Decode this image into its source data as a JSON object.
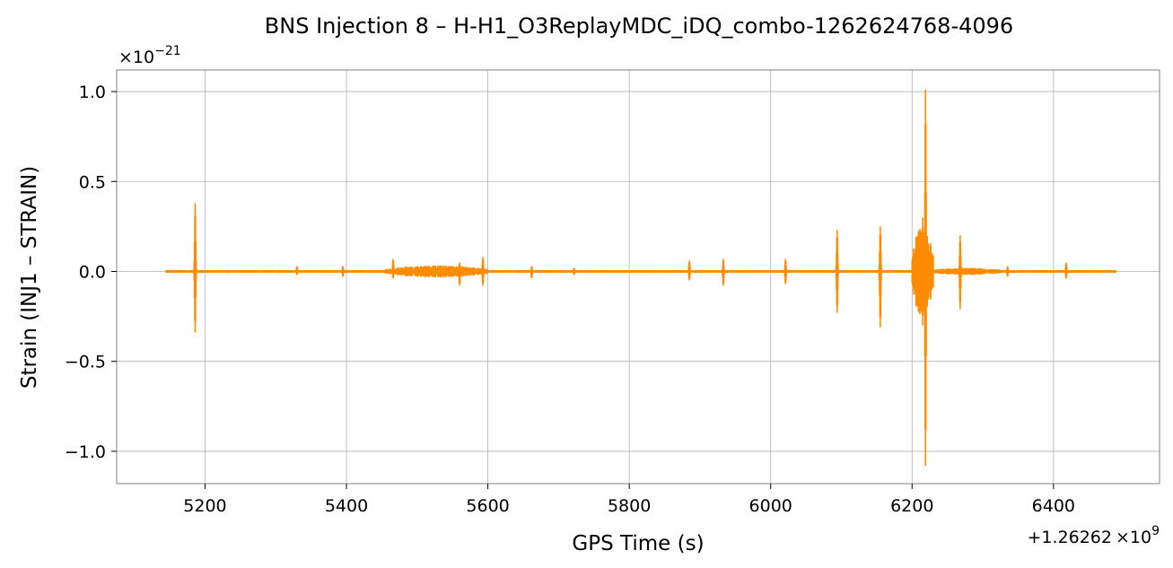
{
  "chart_data": {
    "type": "line",
    "title": "BNS Injection 8 – H-H1_O3ReplayMDC_iDQ_combo-1262624768-4096",
    "xlabel": "GPS Time (s)",
    "ylabel": "Strain (INJ1 – STRAIN)",
    "x_offset_label_prefix": "+1.26262",
    "x_offset_label_suffix": "×10",
    "x_offset_label_exp": "9",
    "y_multiplier_prefix": "×10",
    "y_multiplier_exp": "−21",
    "xlim": [
      5075,
      6550
    ],
    "ylim": [
      -1.18,
      1.12
    ],
    "x_ticks": [
      5200,
      5400,
      5600,
      5800,
      6000,
      6200,
      6400
    ],
    "x_tick_labels": [
      "5200",
      "5400",
      "5600",
      "5800",
      "6000",
      "6200",
      "6400"
    ],
    "y_ticks": [
      -1.0,
      -0.5,
      0.0,
      0.5,
      1.0
    ],
    "y_tick_labels": [
      "−1.0",
      "−0.5",
      "0.0",
      "0.5",
      "1.0"
    ],
    "grid": true,
    "line_color": "#ff8c00",
    "x_range_data": [
      5145,
      6488
    ],
    "baseline_amplitude": 0.008,
    "noisy_segments": [
      {
        "start": 5455,
        "end": 5600,
        "amp": 0.035
      },
      {
        "start": 6225,
        "end": 6330,
        "amp": 0.02
      },
      {
        "start": 6200,
        "end": 6230,
        "amp": 0.25
      }
    ],
    "spikes": [
      {
        "x": 5186,
        "max": 0.38,
        "min": -0.34
      },
      {
        "x": 5330,
        "max": 0.03,
        "min": -0.02
      },
      {
        "x": 5395,
        "max": 0.03,
        "min": -0.03
      },
      {
        "x": 5466,
        "max": 0.07,
        "min": -0.04
      },
      {
        "x": 5560,
        "max": 0.05,
        "min": -0.08
      },
      {
        "x": 5593,
        "max": 0.08,
        "min": -0.08
      },
      {
        "x": 5662,
        "max": 0.03,
        "min": -0.04
      },
      {
        "x": 5722,
        "max": 0.02,
        "min": -0.02
      },
      {
        "x": 5885,
        "max": 0.06,
        "min": -0.05
      },
      {
        "x": 5933,
        "max": 0.07,
        "min": -0.08
      },
      {
        "x": 6021,
        "max": 0.07,
        "min": -0.07
      },
      {
        "x": 6094,
        "max": 0.23,
        "min": -0.23
      },
      {
        "x": 6155,
        "max": 0.25,
        "min": -0.31
      },
      {
        "x": 6215,
        "max": 0.3,
        "min": -0.3
      },
      {
        "x": 6219,
        "max": 1.01,
        "min": -1.08
      },
      {
        "x": 6268,
        "max": 0.2,
        "min": -0.21
      },
      {
        "x": 6335,
        "max": 0.03,
        "min": -0.03
      },
      {
        "x": 6418,
        "max": 0.05,
        "min": -0.04
      }
    ]
  }
}
